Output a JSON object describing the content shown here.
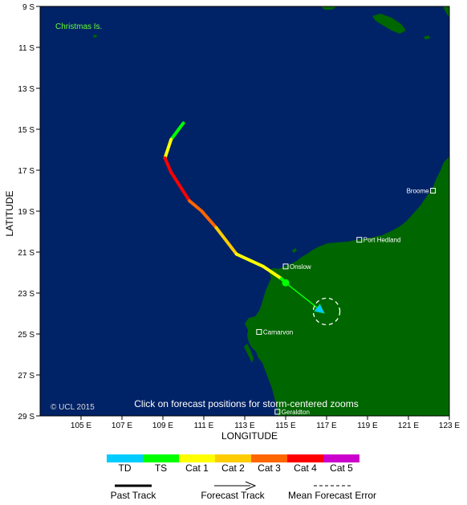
{
  "map": {
    "x_axis_title": "LONGITUDE",
    "y_axis_title": "LATITUDE",
    "lat_ticks": [
      {
        "value": 9,
        "label": "9 S"
      },
      {
        "value": 11,
        "label": "11 S"
      },
      {
        "value": 13,
        "label": "13 S"
      },
      {
        "value": 15,
        "label": "15 S"
      },
      {
        "value": 17,
        "label": "17 S"
      },
      {
        "value": 19,
        "label": "19 S"
      },
      {
        "value": 21,
        "label": "21 S"
      },
      {
        "value": 23,
        "label": "23 S"
      },
      {
        "value": 25,
        "label": "25 S"
      },
      {
        "value": 27,
        "label": "27 S"
      },
      {
        "value": 29,
        "label": "29 S"
      }
    ],
    "lon_ticks": [
      {
        "value": 105,
        "label": "105 E"
      },
      {
        "value": 107,
        "label": "107 E"
      },
      {
        "value": 109,
        "label": "109 E"
      },
      {
        "value": 111,
        "label": "111 E"
      },
      {
        "value": 113,
        "label": "113 E"
      },
      {
        "value": 115,
        "label": "115 E"
      },
      {
        "value": 117,
        "label": "117 E"
      },
      {
        "value": 119,
        "label": "119 E"
      },
      {
        "value": 121,
        "label": "121 E"
      },
      {
        "value": 123,
        "label": "123 E"
      }
    ],
    "lon_range": [
      103,
      123
    ],
    "lat_range": [
      9,
      29
    ],
    "ocean_color": "#002266",
    "land_color": "#006600",
    "island_label": "Christmas Is.",
    "places": [
      {
        "name": "Broome",
        "lon": 122.2,
        "lat": 18.0
      },
      {
        "name": "Port Hedland",
        "lon": 118.6,
        "lat": 20.4
      },
      {
        "name": "Onslow",
        "lon": 115.0,
        "lat": 21.7
      },
      {
        "name": "Carnarvon",
        "lon": 113.7,
        "lat": 24.9
      },
      {
        "name": "Geraldton",
        "lon": 114.6,
        "lat": 28.8
      }
    ],
    "note": "Click on forecast positions for storm-centered zooms",
    "copyright": "© UCL 2015"
  },
  "track": {
    "past": [
      {
        "lon": 110.0,
        "lat": 14.7,
        "category": "TD"
      },
      {
        "lon": 109.4,
        "lat": 15.5,
        "category": "TS"
      },
      {
        "lon": 109.1,
        "lat": 16.4,
        "category": "Cat 1"
      },
      {
        "lon": 109.4,
        "lat": 17.1,
        "category": "Cat 4"
      },
      {
        "lon": 110.3,
        "lat": 18.5,
        "category": "Cat 4"
      },
      {
        "lon": 110.9,
        "lat": 19.0,
        "category": "Cat 3"
      },
      {
        "lon": 111.6,
        "lat": 19.8,
        "category": "Cat 3"
      },
      {
        "lon": 112.6,
        "lat": 21.1,
        "category": "Cat 2"
      },
      {
        "lon": 113.9,
        "lat": 21.7,
        "category": "Cat 1"
      },
      {
        "lon": 114.8,
        "lat": 22.3,
        "category": "Cat 1"
      },
      {
        "lon": 115.0,
        "lat": 22.5,
        "category": "TS"
      }
    ],
    "current": {
      "lon": 115.0,
      "lat": 22.5,
      "category": "TS"
    },
    "forecast": [
      {
        "lon": 115.0,
        "lat": 22.5,
        "category": "TS"
      },
      {
        "lon": 116.9,
        "lat": 24.0,
        "category": "TD"
      }
    ],
    "error_circle": {
      "lon": 117.0,
      "lat": 23.9,
      "radius_deg": 0.65
    }
  },
  "legend": {
    "categories": [
      {
        "label": "TD",
        "color": "#00ccff"
      },
      {
        "label": "TS",
        "color": "#00ff00"
      },
      {
        "label": "Cat 1",
        "color": "#ffff00"
      },
      {
        "label": "Cat 2",
        "color": "#ffcc00"
      },
      {
        "label": "Cat 3",
        "color": "#ff6600"
      },
      {
        "label": "Cat 4",
        "color": "#ff0000"
      },
      {
        "label": "Cat 5",
        "color": "#cc00cc"
      }
    ],
    "past_track": "Past Track",
    "forecast_track": "Forecast Track",
    "mean_error": "Mean Forecast Error"
  }
}
